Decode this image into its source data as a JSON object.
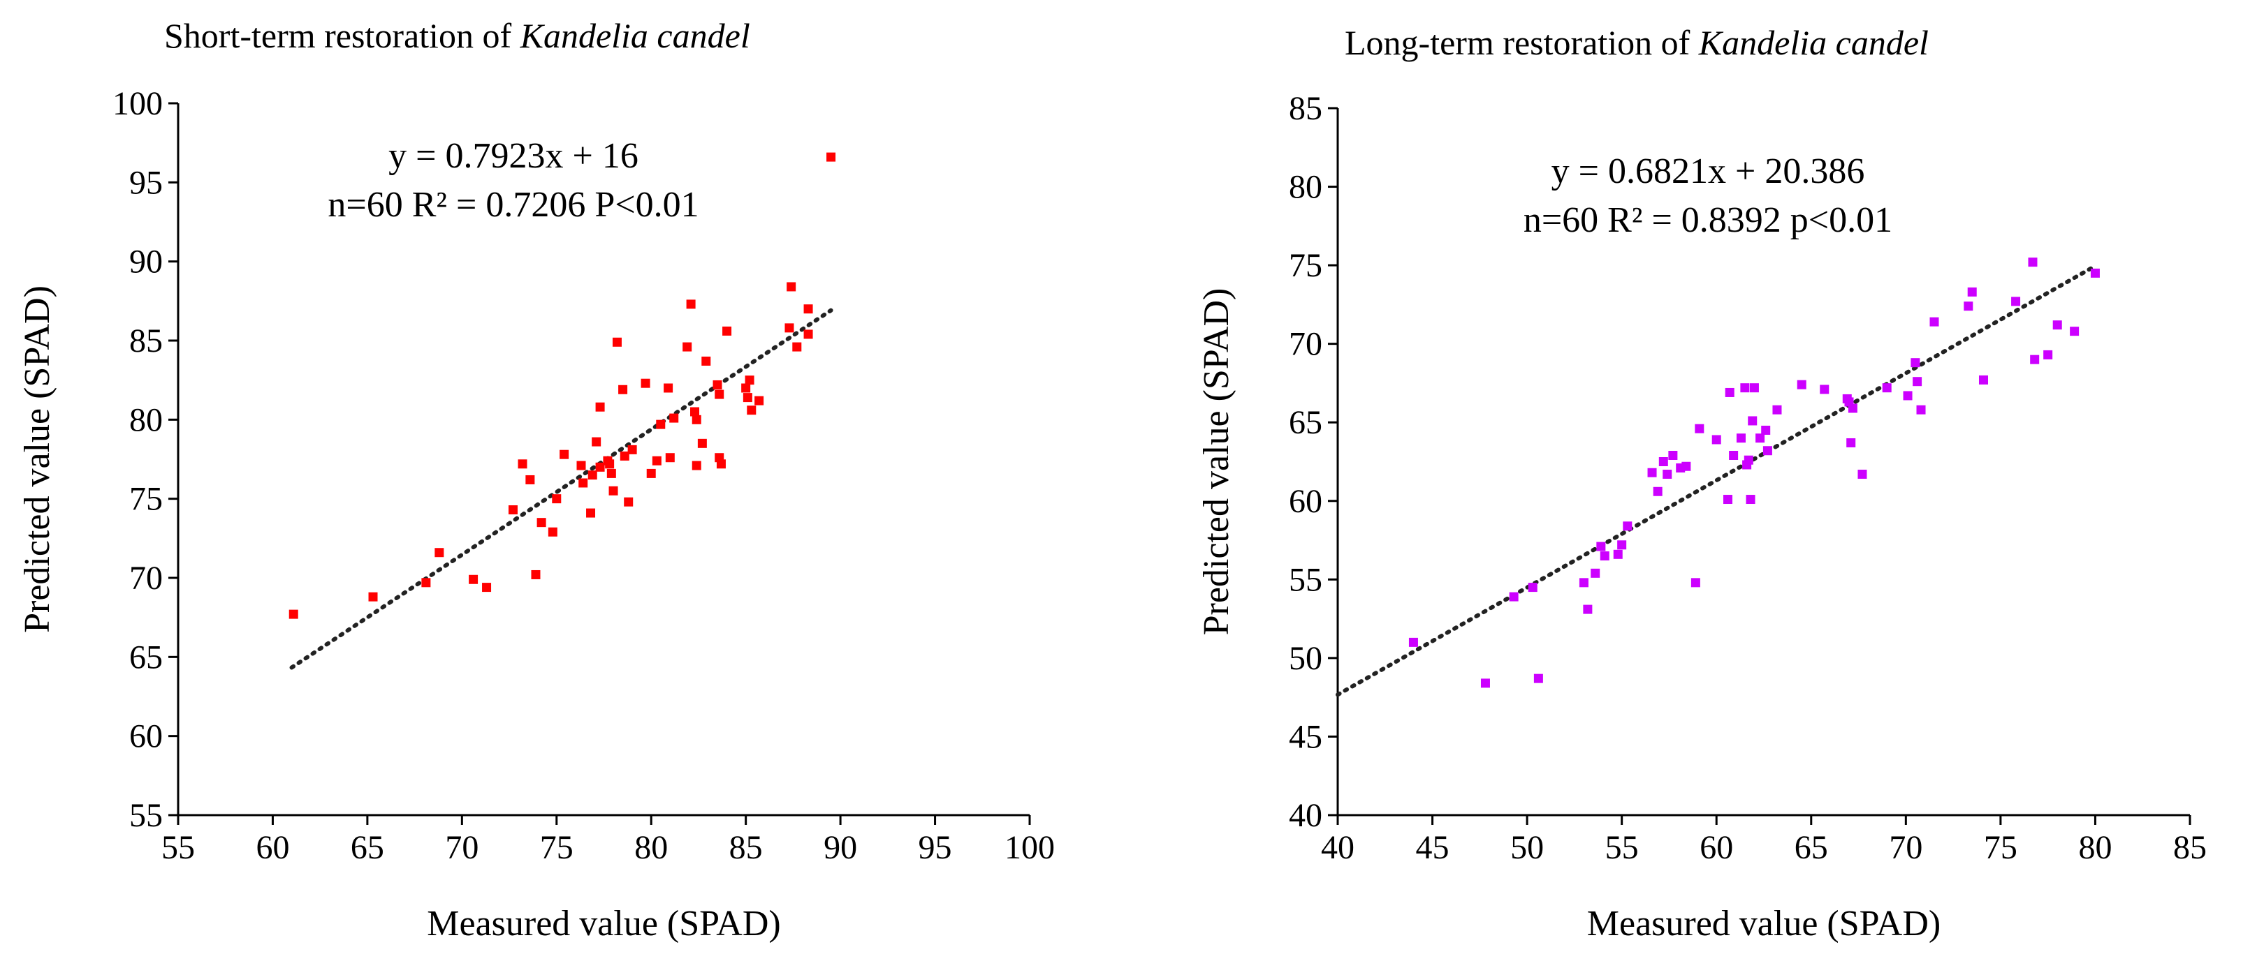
{
  "chart_data": [
    {
      "type": "scatter",
      "title_prefix": "Short-term restoration of ",
      "title_species": "Kandelia candel",
      "xlabel": "Measured value (SPAD)",
      "ylabel": "Predicted value (SPAD)",
      "xlim": [
        55,
        100
      ],
      "ylim": [
        55,
        100
      ],
      "xticks": [
        55,
        60,
        65,
        70,
        75,
        80,
        85,
        90,
        95,
        100
      ],
      "yticks": [
        55,
        60,
        65,
        70,
        75,
        80,
        85,
        90,
        95,
        100
      ],
      "equation": "y = 0.7923x + 16",
      "stats": "n=60 R² = 0.7206 P<0.01",
      "trendline": {
        "slope": 0.7923,
        "intercept": 16,
        "x_range": [
          61,
          89.5
        ]
      },
      "point_color": "#ff0000",
      "points": [
        [
          61.1,
          67.7
        ],
        [
          65.3,
          68.8
        ],
        [
          68.1,
          69.7
        ],
        [
          68.8,
          71.6
        ],
        [
          70.6,
          69.9
        ],
        [
          71.3,
          69.4
        ],
        [
          72.7,
          74.3
        ],
        [
          73.2,
          77.2
        ],
        [
          73.6,
          76.2
        ],
        [
          73.9,
          70.2
        ],
        [
          74.2,
          73.5
        ],
        [
          74.8,
          72.9
        ],
        [
          75.0,
          75.0
        ],
        [
          75.4,
          77.8
        ],
        [
          76.3,
          77.1
        ],
        [
          76.4,
          76.0
        ],
        [
          76.8,
          74.1
        ],
        [
          76.9,
          76.5
        ],
        [
          77.1,
          78.6
        ],
        [
          77.3,
          80.8
        ],
        [
          77.3,
          77.0
        ],
        [
          77.8,
          77.2
        ],
        [
          77.9,
          76.6
        ],
        [
          78.0,
          75.5
        ],
        [
          78.2,
          84.9
        ],
        [
          78.5,
          81.9
        ],
        [
          78.6,
          77.7
        ],
        [
          78.8,
          74.8
        ],
        [
          79.0,
          78.1
        ],
        [
          79.7,
          82.3
        ],
        [
          80.0,
          76.6
        ],
        [
          80.3,
          77.4
        ],
        [
          80.5,
          79.7
        ],
        [
          81.0,
          77.6
        ],
        [
          81.2,
          80.1
        ],
        [
          81.9,
          84.6
        ],
        [
          82.1,
          87.3
        ],
        [
          82.3,
          80.5
        ],
        [
          82.4,
          80.0
        ],
        [
          82.4,
          77.1
        ],
        [
          82.7,
          78.5
        ],
        [
          82.9,
          83.7
        ],
        [
          83.5,
          82.2
        ],
        [
          83.6,
          81.6
        ],
        [
          83.6,
          77.6
        ],
        [
          83.7,
          77.2
        ],
        [
          84.0,
          85.6
        ],
        [
          85.0,
          82.0
        ],
        [
          85.1,
          81.4
        ],
        [
          85.3,
          80.6
        ],
        [
          85.7,
          81.2
        ],
        [
          87.3,
          85.8
        ],
        [
          87.4,
          88.4
        ],
        [
          87.7,
          84.6
        ],
        [
          88.3,
          87.0
        ],
        [
          88.3,
          85.4
        ],
        [
          89.5,
          96.6
        ],
        [
          85.2,
          82.5
        ],
        [
          80.9,
          82.0
        ],
        [
          77.7,
          77.4
        ]
      ]
    },
    {
      "type": "scatter",
      "title_prefix": "Long-term restoration of ",
      "title_species": "Kandelia candel",
      "xlabel": "Measured value (SPAD)",
      "ylabel": "Predicted value (SPAD)",
      "xlim": [
        40,
        85
      ],
      "ylim": [
        40,
        85
      ],
      "xticks": [
        40,
        45,
        50,
        55,
        60,
        65,
        70,
        75,
        80,
        85
      ],
      "yticks": [
        40,
        45,
        50,
        55,
        60,
        65,
        70,
        75,
        80,
        85
      ],
      "equation": "y = 0.6821x + 20.386",
      "stats": "n=60 R² = 0.8392 p<0.01",
      "trendline": {
        "slope": 0.6821,
        "intercept": 20.386,
        "x_range": [
          40,
          80
        ]
      },
      "point_color": "#cc00ff",
      "points": [
        [
          44.0,
          51.0
        ],
        [
          47.8,
          48.4
        ],
        [
          49.3,
          53.9
        ],
        [
          50.3,
          54.5
        ],
        [
          50.6,
          48.7
        ],
        [
          53.0,
          54.8
        ],
        [
          53.2,
          53.1
        ],
        [
          53.6,
          55.4
        ],
        [
          53.9,
          57.1
        ],
        [
          54.1,
          56.5
        ],
        [
          54.8,
          56.6
        ],
        [
          55.0,
          57.2
        ],
        [
          55.3,
          58.4
        ],
        [
          56.6,
          61.8
        ],
        [
          56.9,
          60.6
        ],
        [
          57.2,
          62.5
        ],
        [
          57.4,
          61.7
        ],
        [
          57.7,
          62.9
        ],
        [
          58.1,
          62.1
        ],
        [
          58.4,
          62.2
        ],
        [
          58.9,
          54.8
        ],
        [
          59.1,
          64.6
        ],
        [
          60.0,
          63.9
        ],
        [
          60.6,
          60.1
        ],
        [
          60.7,
          66.9
        ],
        [
          60.9,
          62.9
        ],
        [
          61.3,
          64.0
        ],
        [
          61.5,
          67.2
        ],
        [
          61.7,
          62.6
        ],
        [
          61.8,
          60.1
        ],
        [
          61.9,
          65.1
        ],
        [
          62.0,
          67.2
        ],
        [
          62.3,
          64.0
        ],
        [
          62.6,
          64.5
        ],
        [
          62.7,
          63.2
        ],
        [
          63.2,
          65.8
        ],
        [
          64.5,
          67.4
        ],
        [
          65.7,
          67.1
        ],
        [
          67.0,
          66.3
        ],
        [
          67.1,
          63.7
        ],
        [
          67.2,
          65.9
        ],
        [
          67.7,
          61.7
        ],
        [
          69.0,
          67.2
        ],
        [
          70.1,
          66.7
        ],
        [
          70.5,
          68.8
        ],
        [
          70.6,
          67.6
        ],
        [
          70.8,
          65.8
        ],
        [
          71.5,
          71.4
        ],
        [
          73.3,
          72.4
        ],
        [
          73.5,
          73.3
        ],
        [
          74.1,
          67.7
        ],
        [
          75.8,
          72.7
        ],
        [
          76.7,
          75.2
        ],
        [
          76.8,
          69.0
        ],
        [
          77.5,
          69.3
        ],
        [
          78.0,
          71.2
        ],
        [
          78.9,
          70.8
        ],
        [
          80.0,
          74.5
        ],
        [
          66.9,
          66.5
        ],
        [
          61.6,
          62.3
        ]
      ]
    }
  ]
}
